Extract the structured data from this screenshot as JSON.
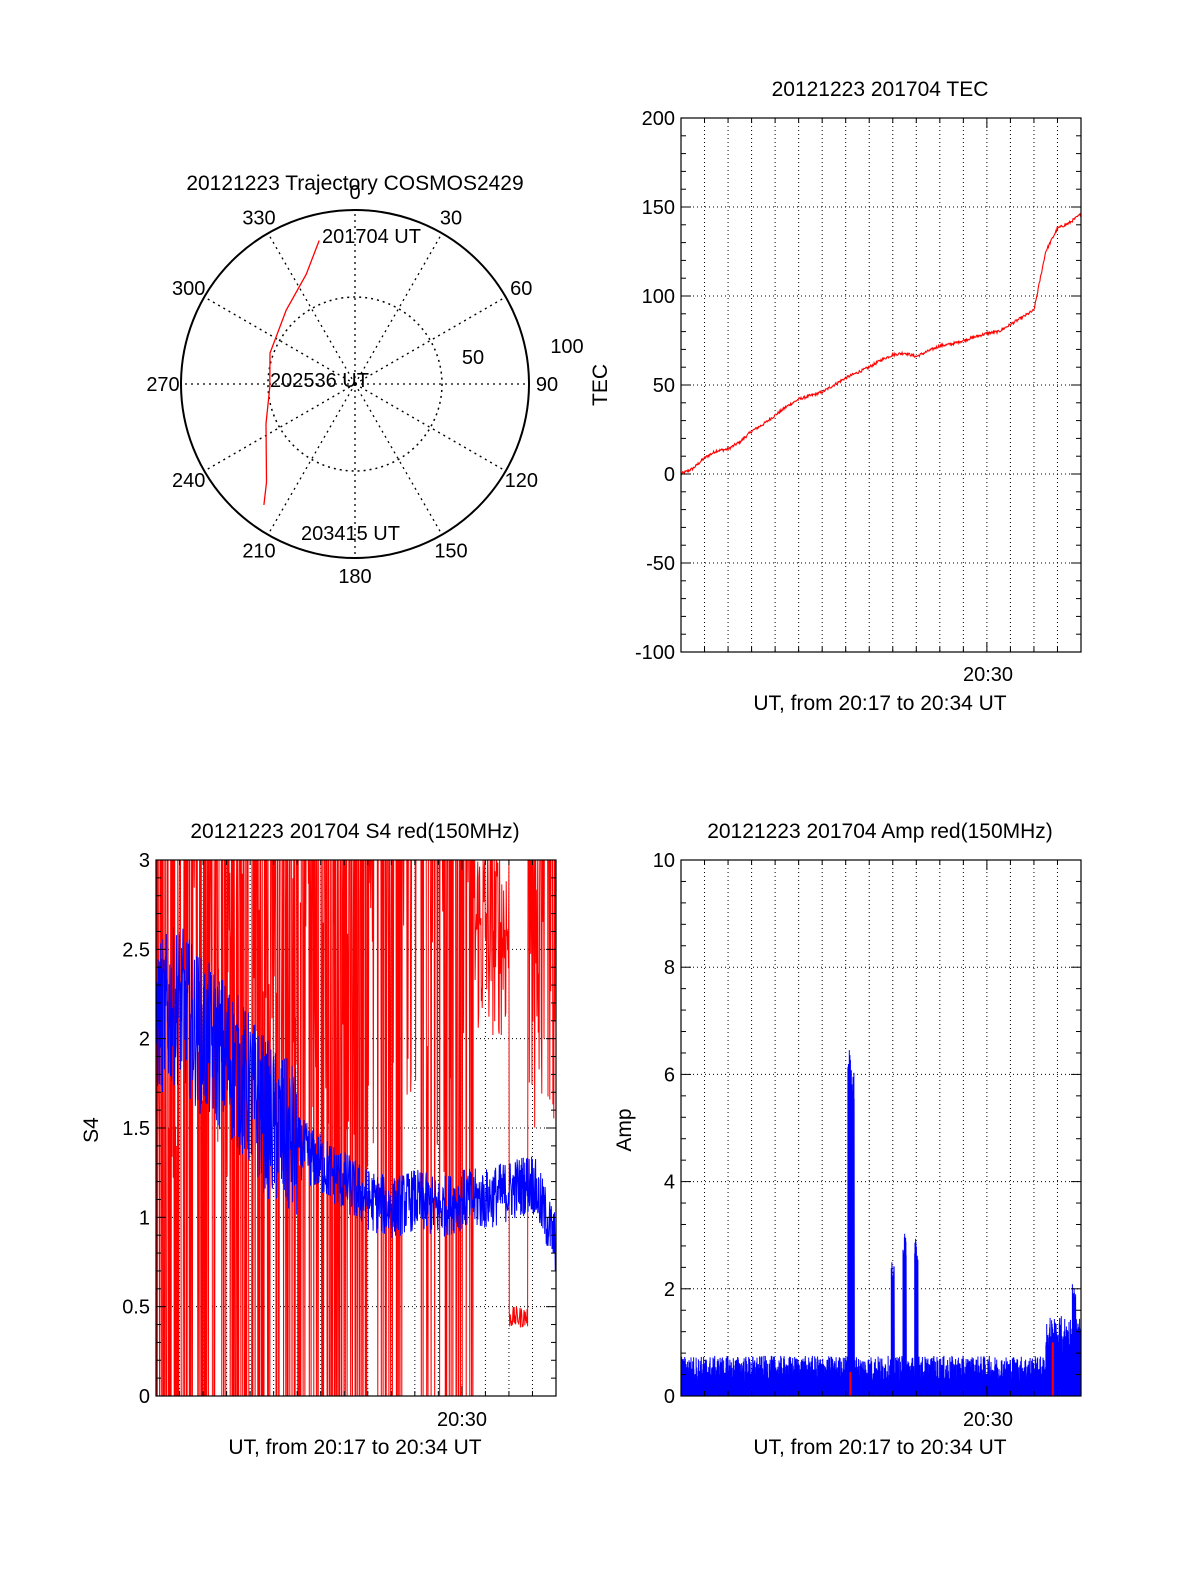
{
  "colors": {
    "red": "#ff0000",
    "blue": "#0000ff",
    "axes": "#000000",
    "background": "#ffffff"
  },
  "chart_data": [
    {
      "type": "polar",
      "title": "20121223 Trajectory COSMOS2429",
      "azimuth_labels": [
        "0",
        "30",
        "60",
        "90",
        "120",
        "150",
        "180",
        "210",
        "240",
        "270",
        "300",
        "330"
      ],
      "radial_labels": [
        "50",
        "100"
      ],
      "grid": true,
      "trajectory": {
        "color": "red",
        "points": [
          {
            "az": 346,
            "r": 85
          },
          {
            "az": 336,
            "r": 69
          },
          {
            "az": 317,
            "r": 58
          },
          {
            "az": 290,
            "r": 52
          },
          {
            "az": 268,
            "r": 49
          },
          {
            "az": 246,
            "r": 56
          },
          {
            "az": 222,
            "r": 76
          },
          {
            "az": 217,
            "r": 87
          }
        ]
      },
      "annotations": [
        "201704 UT",
        "202536 UT",
        "203415 UT"
      ]
    },
    {
      "type": "line",
      "title": "20121223 201704 TEC",
      "ylabel": "TEC",
      "xlabel": "UT, from 20:17 to 20:34 UT",
      "xtick_label": "20:30",
      "xtick_pos_min": 13,
      "xlim_min": [
        0,
        17
      ],
      "ylim": [
        -100,
        200
      ],
      "yticks": [
        "-100",
        "-50",
        "0",
        "50",
        "100",
        "150",
        "200"
      ],
      "grid": true,
      "series": [
        {
          "color": "red",
          "x": [
            0,
            0.5,
            1.0,
            1.5,
            2.0,
            2.5,
            3.0,
            3.5,
            4.0,
            4.5,
            5.0,
            5.5,
            6.0,
            6.5,
            7.0,
            7.5,
            8.0,
            8.5,
            9.0,
            9.5,
            10.0,
            10.5,
            11.0,
            11.5,
            12.0,
            12.5,
            13.0,
            13.5,
            14.0,
            14.5,
            15.0,
            15.5,
            16.0,
            16.5,
            17.0
          ],
          "y": [
            0,
            3,
            9,
            13,
            14,
            18,
            24,
            28,
            33,
            38,
            42,
            44,
            46,
            50,
            54,
            57,
            60,
            64,
            67,
            68,
            66,
            69,
            72,
            73,
            75,
            77,
            79,
            80,
            84,
            88,
            92,
            125,
            138,
            141,
            146
          ]
        }
      ]
    },
    {
      "type": "line",
      "title": "20121223 201704 S4 red(150MHz)",
      "ylabel": "S4",
      "xlabel": "UT, from 20:17 to 20:34 UT",
      "xtick_label": "20:30",
      "xtick_pos_min": 13,
      "xlim_min": [
        0,
        17
      ],
      "ylim": [
        0,
        3
      ],
      "yticks": [
        "0",
        "0.5",
        "1",
        "1.5",
        "2",
        "2.5",
        "3"
      ],
      "grid": true,
      "series": [
        {
          "color": "red",
          "description_values": "dense spikes saturating 0-3 until ~20:28, then 0.4-0.5 near 20:32",
          "x": [
            0,
            1,
            2,
            3,
            4,
            5,
            6,
            7,
            8,
            9,
            10,
            11,
            12,
            13,
            14,
            15,
            15.5,
            16,
            16.5,
            17
          ],
          "y": [
            3,
            3,
            3,
            3,
            3,
            3,
            3,
            3,
            3,
            3,
            3,
            3,
            3,
            3,
            2.6,
            0.4,
            0.45,
            2.9,
            2.5,
            2.9
          ]
        },
        {
          "color": "blue",
          "x": [
            0,
            1,
            2,
            3,
            4,
            5,
            6,
            7,
            8,
            9,
            10,
            11,
            12,
            13,
            14,
            15,
            16,
            17
          ],
          "y": [
            2.1,
            2.2,
            2.0,
            1.9,
            1.7,
            1.5,
            1.4,
            1.3,
            1.2,
            1.1,
            1.05,
            1.1,
            1.05,
            1.1,
            1.1,
            1.15,
            1.2,
            0.85
          ]
        }
      ]
    },
    {
      "type": "line",
      "title": "20121223 201704 Amp red(150MHz)",
      "ylabel": "Amp",
      "xlabel": "UT, from 20:17 to 20:34 UT",
      "xtick_label": "20:30",
      "xtick_pos_min": 13,
      "xlim_min": [
        0,
        17
      ],
      "ylim": [
        0,
        10
      ],
      "yticks": [
        "0",
        "2",
        "4",
        "6",
        "8",
        "10"
      ],
      "grid": true,
      "series": [
        {
          "color": "blue",
          "baseline_max": 0.75,
          "spikes": [
            {
              "x": 7.15,
              "y": 6.5
            },
            {
              "x": 7.3,
              "y": 6.1
            },
            {
              "x": 9.0,
              "y": 2.5
            },
            {
              "x": 9.5,
              "y": 3.05
            },
            {
              "x": 10.0,
              "y": 2.95
            },
            {
              "x": 16.7,
              "y": 2.1
            }
          ]
        },
        {
          "color": "red",
          "spikes": [
            {
              "x": 7.2,
              "y": 0.45
            },
            {
              "x": 15.8,
              "y": 1.0
            }
          ]
        }
      ]
    }
  ]
}
